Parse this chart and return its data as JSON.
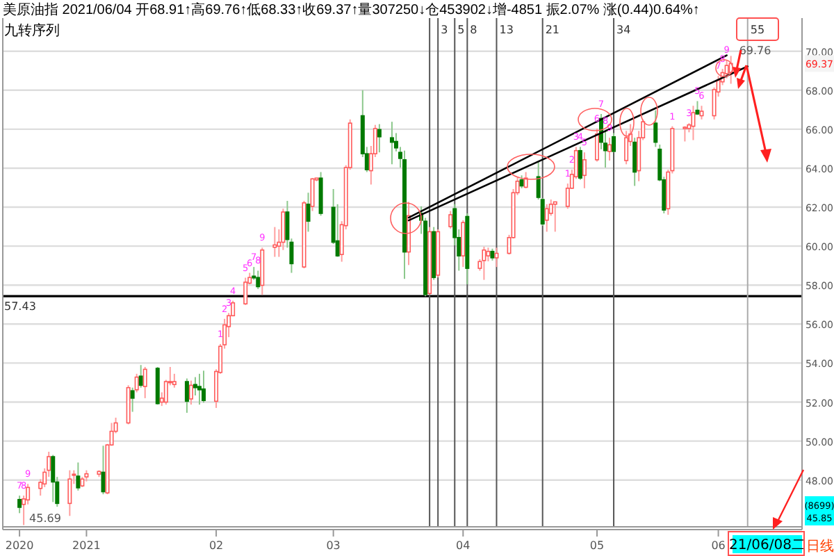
{
  "chart_data": {
    "type": "candlestick",
    "title": "美原油指 2021/06/04 开68.91↑高69.76↑低68.33↑收69.37↑量307250↓仓453902↓增-4851 振2.07% 涨(0.44)0.64%↑",
    "subtitle": "九转序列",
    "x": [
      "2020-12-16",
      "2020-12-17",
      "2020-12-18",
      "2020-12-21",
      "2020-12-22",
      "2020-12-23",
      "2020-12-24",
      "2020-12-25",
      "2020-12-28",
      "2020-12-29",
      "2020-12-30",
      "2020-12-31",
      "2021-01-01",
      "2021-01-04",
      "2021-01-05",
      "2021-01-06",
      "2021-01-07",
      "2021-01-08",
      "2021-01-11",
      "2021-01-12",
      "2021-01-13",
      "2021-01-14",
      "2021-01-15",
      "2021-01-18",
      "2021-01-19",
      "2021-01-20",
      "2021-01-21",
      "2021-01-22",
      "2021-01-25",
      "2021-01-26",
      "2021-01-27",
      "2021-01-28",
      "2021-01-29",
      "2021-02-01",
      "2021-02-02",
      "2021-02-03",
      "2021-02-04",
      "2021-02-05",
      "2021-02-08",
      "2021-02-09",
      "2021-02-10",
      "2021-02-11",
      "2021-02-12",
      "2021-02-15",
      "2021-02-16",
      "2021-02-17",
      "2021-02-18",
      "2021-02-19",
      "2021-02-22",
      "2021-02-23",
      "2021-02-24",
      "2021-02-25",
      "2021-02-26",
      "2021-03-01",
      "2021-03-02",
      "2021-03-03",
      "2021-03-04",
      "2021-03-05",
      "2021-03-08",
      "2021-03-09",
      "2021-03-10",
      "2021-03-11",
      "2021-03-12",
      "2021-03-15",
      "2021-03-16",
      "2021-03-17",
      "2021-03-18",
      "2021-03-19",
      "2021-03-22",
      "2021-03-23",
      "2021-03-24",
      "2021-03-25",
      "2021-03-26",
      "2021-03-29",
      "2021-03-30",
      "2021-03-31",
      "2021-04-01",
      "2021-04-02",
      "2021-04-05",
      "2021-04-06",
      "2021-04-07",
      "2021-04-08",
      "2021-04-09",
      "2021-04-12",
      "2021-04-13",
      "2021-04-14",
      "2021-04-15",
      "2021-04-16",
      "2021-04-19",
      "2021-04-20",
      "2021-04-21",
      "2021-04-22",
      "2021-04-23",
      "2021-04-26",
      "2021-04-27",
      "2021-04-28",
      "2021-04-29",
      "2021-04-30",
      "2021-05-03",
      "2021-05-04",
      "2021-05-05",
      "2021-05-06",
      "2021-05-07",
      "2021-05-10",
      "2021-05-11",
      "2021-05-12",
      "2021-05-13",
      "2021-05-14",
      "2021-05-17",
      "2021-05-18",
      "2021-05-19",
      "2021-05-20",
      "2021-05-21",
      "2021-05-24",
      "2021-05-25",
      "2021-05-26",
      "2021-05-27",
      "2021-05-28",
      "2021-05-31",
      "2021-06-01",
      "2021-06-02",
      "2021-06-03",
      "2021-06-04"
    ],
    "ohlc": [
      [
        47.0,
        47.2,
        46.3,
        46.6
      ],
      [
        46.75,
        47.2,
        45.69,
        47.03
      ],
      [
        46.98,
        47.8,
        46.75,
        47.62
      ],
      [
        47.57,
        48.04,
        47.2,
        47.88
      ],
      [
        47.8,
        48.6,
        47.64,
        48.4
      ],
      [
        48.5,
        49.45,
        48.16,
        49.2
      ],
      [
        49.2,
        49.29,
        46.87,
        47.9
      ],
      [
        47.9,
        48.16,
        46.63,
        46.8
      ],
      [
        46.8,
        48.5,
        46.16,
        48.05
      ],
      [
        48.25,
        48.5,
        47.8,
        48.3
      ],
      [
        48.2,
        48.9,
        47.46,
        47.6
      ],
      [
        47.7,
        48.16,
        47.64,
        48.05
      ],
      [
        48.16,
        48.5,
        47.93,
        48.32
      ],
      [
        48.3,
        48.5,
        48.16,
        48.44
      ],
      [
        48.4,
        49.76,
        47.27,
        47.4
      ],
      [
        47.34,
        49.85,
        47.27,
        49.8
      ],
      [
        49.8,
        50.93,
        49.76,
        50.5
      ],
      [
        50.5,
        51.2,
        50.4,
        50.93
      ],
      [
        50.93,
        52.86,
        50.86,
        52.74
      ],
      [
        52.58,
        52.74,
        51.5,
        52.2
      ],
      [
        52.63,
        53.45,
        52.5,
        53.28
      ],
      [
        53.33,
        53.9,
        52.74,
        52.86
      ],
      [
        52.8,
        53.8,
        52.2,
        53.68
      ],
      [
        53.73,
        53.8,
        51.87,
        51.92
      ],
      [
        52.0,
        52.5,
        51.8,
        52.2
      ],
      [
        52.0,
        53.14,
        51.87,
        53.05
      ],
      [
        53.0,
        53.8,
        52.86,
        53.05
      ],
      [
        52.9,
        53.45,
        52.74,
        53.05
      ],
      [
        53.05,
        53.21,
        51.45,
        52.04
      ],
      [
        52.16,
        53.1,
        51.87,
        52.86
      ],
      [
        52.9,
        53.28,
        52.34,
        52.74
      ],
      [
        52.8,
        53.45,
        51.87,
        52.63
      ],
      [
        52.67,
        53.61,
        51.97,
        52.08
      ],
      [
        52.04,
        53.68,
        51.7,
        53.57
      ],
      [
        53.52,
        54.98,
        53.45,
        54.86
      ],
      [
        54.94,
        56.27,
        54.74,
        55.96
      ],
      [
        55.87,
        56.57,
        55.33,
        56.43
      ],
      [
        56.43,
        57.2,
        56.4,
        57.09
      ],
      [
        57.04,
        58.38,
        56.98,
        58.15
      ],
      [
        58.1,
        58.63,
        58.04,
        58.39
      ],
      [
        58.46,
        58.93,
        58.27,
        58.37
      ],
      [
        58.39,
        58.74,
        57.8,
        57.92
      ],
      [
        57.99,
        59.92,
        57.5,
        59.8
      ],
      [
        59.94,
        60.98,
        59.45,
        60.06
      ],
      [
        60.0,
        60.86,
        59.45,
        60.2
      ],
      [
        60.2,
        61.92,
        59.8,
        61.75
      ],
      [
        61.75,
        62.32,
        59.92,
        60.34
      ],
      [
        60.2,
        60.39,
        58.63,
        59.1
      ],
      [
        58.93,
        62.32,
        58.86,
        62.22
      ],
      [
        62.15,
        62.74,
        60.74,
        61.28
      ],
      [
        62.04,
        63.49,
        61.8,
        63.45
      ],
      [
        63.4,
        63.49,
        63.33,
        63.49
      ],
      [
        63.49,
        63.8,
        61.56,
        61.68
      ],
      [
        61.99,
        62.93,
        60.11,
        60.2
      ],
      [
        60.27,
        62.15,
        59.45,
        59.5
      ],
      [
        59.57,
        61.28,
        59.2,
        61.1
      ],
      [
        61.05,
        64.15,
        60.86,
        64.03
      ],
      [
        64.03,
        66.5,
        63.92,
        66.31
      ],
      [
        66.69,
        68.0,
        64.57,
        64.74
      ],
      [
        64.74,
        65.09,
        63.8,
        63.92
      ],
      [
        63.87,
        65.14,
        63.16,
        64.74
      ],
      [
        64.74,
        66.22,
        64.57,
        66.03
      ],
      [
        65.98,
        66.26,
        64.81,
        65.61
      ],
      [
        65.56,
        66.38,
        64.2,
        65.33
      ],
      [
        65.37,
        65.8,
        64.86,
        65.04
      ],
      [
        64.81,
        65.09,
        64.03,
        64.5
      ],
      [
        64.43,
        64.9,
        58.32,
        59.7
      ],
      [
        59.7,
        62.27,
        59.03,
        61.56
      ],
      [
        61.68,
        62.04,
        60.63,
        61.33
      ],
      [
        61.28,
        61.45,
        57.43,
        57.52
      ],
      [
        57.57,
        60.98,
        57.5,
        60.74
      ],
      [
        60.74,
        60.98,
        58.27,
        58.39
      ],
      [
        58.51,
        60.86,
        58.39,
        60.74
      ],
      [
        61.0,
        61.8,
        60.9,
        61.61
      ],
      [
        61.92,
        62.15,
        60.04,
        60.44
      ],
      [
        60.44,
        60.86,
        58.74,
        59.5
      ],
      [
        59.5,
        61.33,
        58.93,
        61.21
      ],
      [
        61.52,
        61.68,
        58.04,
        58.86
      ],
      [
        58.86,
        59.33,
        58.74,
        59.21
      ],
      [
        59.26,
        59.97,
        58.27,
        59.8
      ],
      [
        59.5,
        59.92,
        59.22,
        59.73
      ],
      [
        59.73,
        59.87,
        59.26,
        59.4
      ],
      [
        59.4,
        59.92,
        58.93,
        59.63
      ],
      [
        59.63,
        60.58,
        59.57,
        60.44
      ],
      [
        60.44,
        62.93,
        60.39,
        62.74
      ],
      [
        62.74,
        63.56,
        62.62,
        63.33
      ],
      [
        63.4,
        63.63,
        62.97,
        63.09
      ],
      [
        63.02,
        63.8,
        62.97,
        63.49
      ],
      [
        63.56,
        64.34,
        62.39,
        62.5
      ],
      [
        62.39,
        62.46,
        61.04,
        61.14
      ],
      [
        61.33,
        62.15,
        60.74,
        61.92
      ],
      [
        61.68,
        62.39,
        61.56,
        62.15
      ],
      [
        62.15,
        62.27,
        60.74,
        62.27
      ],
      [
        62.04,
        63.21,
        61.92,
        62.97
      ],
      [
        62.97,
        63.92,
        62.93,
        63.68
      ],
      [
        63.56,
        65.09,
        63.45,
        64.9
      ],
      [
        64.9,
        65.09,
        63.4,
        63.49
      ],
      [
        63.63,
        64.81,
        62.97,
        64.43
      ],
      [
        64.43,
        66.03,
        64.34,
        65.75
      ],
      [
        66.55,
        66.78,
        64.97,
        65.33
      ],
      [
        65.28,
        65.91,
        64.03,
        64.9
      ],
      [
        64.86,
        65.56,
        64.39,
        65.2
      ],
      [
        65.61,
        65.8,
        64.81,
        64.86
      ],
      [
        64.39,
        65.91,
        64.2,
        65.56
      ],
      [
        65.37,
        66.26,
        65.14,
        65.75
      ],
      [
        65.33,
        65.56,
        63.09,
        63.8
      ],
      [
        63.87,
        65.91,
        63.33,
        65.56
      ],
      [
        65.56,
        66.5,
        65.44,
        66.38
      ],
      [
        66.31,
        66.97,
        65.09,
        65.33
      ],
      [
        64.97,
        65.21,
        63.33,
        63.4
      ],
      [
        63.4,
        63.56,
        61.68,
        61.85
      ],
      [
        61.92,
        63.92,
        61.61,
        63.8
      ],
      [
        63.87,
        66.15,
        63.73,
        66.03
      ],
      [
        66.03,
        66.15,
        65.37,
        66.1
      ],
      [
        66.03,
        66.31,
        65.84,
        66.22
      ],
      [
        66.15,
        67.2,
        65.44,
        66.85
      ],
      [
        66.97,
        67.44,
        66.73,
        66.78
      ],
      [
        66.69,
        67.2,
        66.5,
        66.92
      ],
      [
        66.69,
        68.14,
        66.5,
        68.03
      ],
      [
        67.91,
        68.73,
        67.67,
        68.5
      ],
      [
        68.43,
        69.09,
        68.26,
        68.9
      ],
      [
        68.85,
        69.55,
        68.61,
        69.27
      ],
      [
        68.91,
        69.76,
        68.33,
        69.37
      ]
    ],
    "xlim": [
      "2020-12-12",
      "2021-06-21"
    ],
    "xticks": [
      {
        "value": "2020-12-16",
        "label": "2020"
      },
      {
        "value": "2021-01-01",
        "label": "2021"
      },
      {
        "value": "2021-02-01",
        "label": "02"
      },
      {
        "value": "2021-03-01",
        "label": "03"
      },
      {
        "value": "2021-04-01",
        "label": "04"
      },
      {
        "value": "2021-05-03",
        "label": "05"
      },
      {
        "value": "2021-06-01",
        "label": "06"
      }
    ],
    "ylim": [
      45.6,
      71.7
    ],
    "yticks": [
      {
        "value": 48,
        "label": "48.00"
      },
      {
        "value": 50,
        "label": "50.00"
      },
      {
        "value": 52,
        "label": "52.00"
      },
      {
        "value": 54,
        "label": "54.00"
      },
      {
        "value": 56,
        "label": "56.00"
      },
      {
        "value": 58,
        "label": "58.00"
      },
      {
        "value": 60,
        "label": "60.00"
      },
      {
        "value": 62,
        "label": "62.00"
      },
      {
        "value": 64,
        "label": "64.00"
      },
      {
        "value": 66,
        "label": "66.00"
      },
      {
        "value": 68,
        "label": "68.00"
      },
      {
        "value": 70,
        "label": "70.00"
      }
    ],
    "grid": "y",
    "series": [
      {
        "type": "line",
        "color": "#000000",
        "x": [
          "2021-03-19",
          "2021-06-03"
        ],
        "values": [
          61.46,
          69.79
        ]
      },
      {
        "type": "line",
        "color": "#000000",
        "x": [
          "2021-03-19",
          "2021-06-08"
        ],
        "values": [
          61.32,
          69.22
        ]
      }
    ],
    "ref_lines": [
      {
        "axis": "y",
        "value": 57.43,
        "label": "57.43",
        "color": "#000000"
      },
      {
        "axis": "x",
        "value": "2021-03-24",
        "color": "#555555"
      },
      {
        "axis": "x",
        "value": "2021-03-26",
        "color": "#555555"
      },
      {
        "axis": "x",
        "value": "2021-03-30",
        "color": "#555555"
      },
      {
        "axis": "x",
        "value": "2021-04-02",
        "color": "#555555"
      },
      {
        "axis": "x",
        "value": "2021-04-09",
        "color": "#555555"
      },
      {
        "axis": "x",
        "value": "2021-04-20",
        "color": "#555555"
      },
      {
        "axis": "x",
        "value": "2021-05-07",
        "color": "#555555"
      },
      {
        "axis": "x",
        "value": "2021-06-08",
        "color": "#aaaaaa"
      }
    ],
    "annotations": [
      {
        "text": "45.69",
        "x": "2020-12-17",
        "y": 45.69
      },
      {
        "text": "69.76",
        "x": "2021-06-04",
        "y": 69.76
      },
      "69.37",
      "(8699)",
      "45.85",
      "21/06/08二",
      "日线",
      "3",
      "5",
      "8",
      "13",
      "21",
      "34",
      "55",
      {
        "text": "7",
        "x": "2020-12-16",
        "y": 47.2
      },
      {
        "text": "8",
        "x": "2020-12-17",
        "y": 47.2
      },
      {
        "text": "9",
        "x": "2020-12-18",
        "y": 47.8
      },
      {
        "text": "1",
        "x": "2021-02-02",
        "y": 54.98
      },
      {
        "text": "2",
        "x": "2021-02-03",
        "y": 56.27
      },
      {
        "text": "3",
        "x": "2021-02-04",
        "y": 56.57
      },
      {
        "text": "4",
        "x": "2021-02-05",
        "y": 57.2
      },
      {
        "text": "5",
        "x": "2021-02-08",
        "y": 58.38
      },
      {
        "text": "6",
        "x": "2021-02-09",
        "y": 58.63
      },
      {
        "text": "7",
        "x": "2021-02-10",
        "y": 58.93
      },
      {
        "text": "8",
        "x": "2021-02-11",
        "y": 58.74
      },
      {
        "text": "9",
        "x": "2021-02-12",
        "y": 59.92
      },
      {
        "text": "1",
        "x": "2021-04-26",
        "y": 63.21
      },
      {
        "text": "2",
        "x": "2021-04-27",
        "y": 63.92
      },
      {
        "text": "3",
        "x": "2021-04-28",
        "y": 65.09
      },
      {
        "text": "4",
        "x": "2021-04-29",
        "y": 65.09
      },
      {
        "text": "5",
        "x": "2021-04-30",
        "y": 64.81
      },
      {
        "text": "6",
        "x": "2021-05-03",
        "y": 66.03
      },
      {
        "text": "7",
        "x": "2021-05-04",
        "y": 66.78
      },
      {
        "text": "8",
        "x": "2021-05-05",
        "y": 65.91
      },
      {
        "text": "9",
        "x": "2021-05-06",
        "y": 65.56
      },
      {
        "text": "1",
        "x": "2021-05-21",
        "y": 66.15
      },
      {
        "text": "3",
        "x": "2021-05-25",
        "y": 66.31
      },
      {
        "text": "5",
        "x": "2021-05-27",
        "y": 67.44
      },
      {
        "text": "6",
        "x": "2021-05-28",
        "y": 67.2
      },
      {
        "text": "7",
        "x": "2021-06-01",
        "y": 68.73
      },
      {
        "text": "8",
        "x": "2021-06-02",
        "y": 69.09
      },
      {
        "text": "9",
        "x": "2021-06-03",
        "y": 69.55
      }
    ]
  }
}
